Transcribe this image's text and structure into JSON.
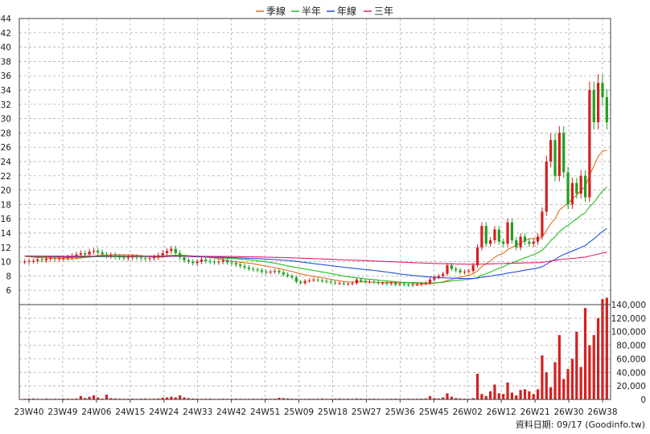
{
  "chart_data": {
    "type": "candlestick",
    "legend": {
      "placement": "top-center",
      "items": [
        {
          "label": "季線",
          "color": "#e07020"
        },
        {
          "label": "半年",
          "color": "#20c020"
        },
        {
          "label": "年線",
          "color": "#2050e0"
        },
        {
          "label": "三年",
          "color": "#e0206a"
        }
      ]
    },
    "colors": {
      "up": "#d42020",
      "down": "#20a020",
      "grid": "#a0a0a0",
      "volume": "#d42020"
    },
    "price_axis": {
      "side": "left",
      "range": [
        4,
        44
      ],
      "ticks": [
        6,
        8,
        10,
        12,
        14,
        16,
        18,
        20,
        22,
        24,
        26,
        28,
        30,
        32,
        34,
        36,
        38,
        40,
        42,
        44
      ]
    },
    "volume_axis": {
      "side": "right",
      "range": [
        0,
        140000
      ],
      "ticks": [
        0,
        20000,
        40000,
        60000,
        80000,
        100000,
        120000,
        140000
      ],
      "tick_labels": [
        "0",
        "20,000",
        "40,000",
        "60,000",
        "80,000",
        "100,000",
        "120,000",
        "140,000"
      ]
    },
    "x_ticks": [
      "23W40",
      "23W49",
      "24W06",
      "24W15",
      "24W24",
      "24W33",
      "24W42",
      "24W51",
      "25W09",
      "25W18",
      "25W27",
      "25W36",
      "25W45",
      "26W02",
      "26W12",
      "26W21",
      "26W30",
      "26W38"
    ],
    "closes": [
      10.0,
      10.1,
      10.1,
      10.3,
      10.2,
      10.4,
      10.5,
      10.4,
      10.5,
      10.5,
      10.6,
      10.8,
      11.0,
      11.2,
      11.0,
      11.4,
      11.5,
      11.3,
      11.0,
      10.8,
      10.9,
      10.7,
      10.6,
      10.5,
      10.6,
      10.7,
      10.6,
      10.5,
      10.4,
      10.5,
      10.6,
      10.9,
      11.2,
      11.5,
      11.8,
      11.2,
      10.6,
      10.2,
      10.0,
      9.8,
      10.0,
      10.3,
      10.1,
      10.0,
      9.9,
      10.0,
      10.2,
      9.9,
      9.8,
      9.6,
      9.4,
      9.2,
      9.0,
      8.9,
      8.8,
      8.6,
      8.5,
      8.6,
      8.7,
      8.5,
      8.2,
      8.0,
      7.8,
      7.2,
      7.0,
      7.3,
      7.4,
      7.5,
      7.4,
      7.3,
      7.2,
      7.1,
      7.0,
      7.0,
      6.9,
      6.9,
      7.0,
      7.5,
      7.3,
      7.2,
      7.2,
      7.1,
      7.0,
      7.0,
      6.9,
      7.0,
      6.8,
      6.9,
      6.8,
      6.7,
      6.8,
      6.8,
      6.9,
      7.0,
      7.5,
      7.8,
      8.0,
      8.3,
      9.5,
      9.0,
      8.8,
      8.5,
      8.6,
      8.7,
      9.5,
      12.0,
      15.0,
      12.5,
      13.0,
      14.5,
      12.8,
      12.5,
      15.5,
      13.0,
      12.0,
      13.5,
      12.8,
      12.5,
      12.8,
      13.5,
      17.0,
      24.0,
      27.0,
      22.0,
      28.0,
      22.5,
      18.0,
      21.0,
      19.5,
      22.0,
      19.0,
      34.0,
      29.5,
      35.0,
      33.0,
      29.5
    ],
    "volumes": [
      1000,
      1200,
      1500,
      1000,
      800,
      1200,
      900,
      1100,
      1000,
      1300,
      1200,
      1100,
      1500,
      5000,
      2000,
      4000,
      6000,
      3000,
      1200,
      7000,
      2000,
      1500,
      1200,
      1000,
      1100,
      1300,
      1000,
      1200,
      1500,
      1000,
      1200,
      1500,
      2500,
      3000,
      4000,
      3000,
      6000,
      3000,
      2000,
      1500,
      1200,
      1000,
      1100,
      1200,
      900,
      1000,
      1200,
      1000,
      1100,
      1200,
      1000,
      900,
      1000,
      1200,
      1000,
      1100,
      1200,
      1000,
      1100,
      2500,
      2000,
      1500,
      1200,
      1000,
      900,
      1000,
      1100,
      1000,
      1200,
      1500,
      1000,
      1100,
      1200,
      1500,
      1000,
      1200,
      1000,
      1500,
      1200,
      1000,
      1100,
      1200,
      1000,
      900,
      1000,
      1100,
      1200,
      1000,
      1100,
      1200,
      1000,
      1100,
      1200,
      1500,
      5000,
      2000,
      1500,
      3000,
      9000,
      4000,
      2000,
      1500,
      1200,
      1000,
      2000,
      38000,
      8000,
      5000,
      12000,
      22000,
      9000,
      8000,
      25000,
      10000,
      6000,
      14000,
      15000,
      12000,
      8000,
      15000,
      65000,
      40000,
      18000,
      55000,
      95000,
      30000,
      45000,
      60000,
      100000,
      48000,
      135000,
      80000,
      95000,
      120000,
      148000,
      150000
    ]
  },
  "footer": {
    "source": "資料日期: 09/17   (Goodinfo.tw)"
  }
}
